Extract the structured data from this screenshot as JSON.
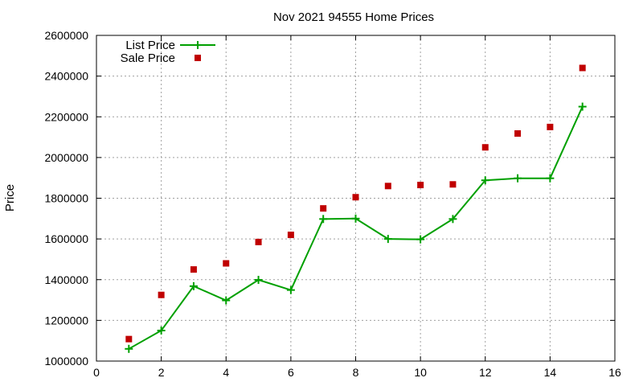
{
  "chart_data": {
    "type": "line",
    "title": "Nov 2021 94555 Home Prices",
    "xlabel": "",
    "ylabel": "Price",
    "xlim": [
      0,
      16
    ],
    "ylim": [
      1000000,
      2600000
    ],
    "x_ticks": [
      0,
      2,
      4,
      6,
      8,
      10,
      12,
      14,
      16
    ],
    "y_ticks": [
      1000000,
      1200000,
      1400000,
      1600000,
      1800000,
      2000000,
      2200000,
      2400000,
      2600000
    ],
    "x_tick_labels": [
      "0",
      "2",
      "4",
      "6",
      "8",
      "10",
      "12",
      "14",
      "16"
    ],
    "y_tick_labels": [
      "1000000",
      "1200000",
      "1400000",
      "1600000",
      "1800000",
      "2000000",
      "2200000",
      "2400000",
      "2600000"
    ],
    "grid": true,
    "legend_position": "top-left",
    "x": [
      1,
      2,
      3,
      4,
      5,
      6,
      7,
      8,
      9,
      10,
      11,
      12,
      13,
      14,
      15
    ],
    "series": [
      {
        "name": "List Price",
        "style": "line-with-plus-markers",
        "color": "#00a000",
        "values": [
          1060000,
          1150000,
          1368000,
          1298000,
          1399000,
          1349000,
          1698000,
          1700000,
          1600000,
          1598000,
          1698000,
          1888000,
          1898000,
          1898000,
          2250000
        ]
      },
      {
        "name": "Sale Price",
        "style": "square-markers",
        "color": "#c00000",
        "values": [
          1108000,
          1325000,
          1450000,
          1480000,
          1585000,
          1620000,
          1750000,
          1805000,
          1860000,
          1865000,
          1868000,
          2050000,
          2118000,
          2150000,
          2440000
        ]
      }
    ]
  }
}
